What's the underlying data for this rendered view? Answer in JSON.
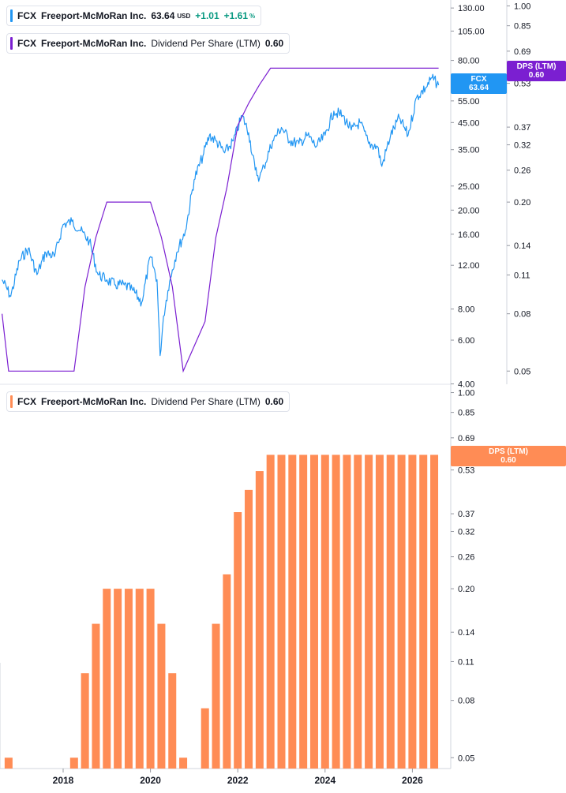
{
  "legends": {
    "top_price": {
      "symbol": "FCX",
      "name": "Freeport-McMoRan Inc.",
      "value": "63.64",
      "currency": "USD",
      "change": "+1.01",
      "change_pct": "+1.61",
      "pct_sign": "%"
    },
    "top_dps": {
      "symbol": "FCX",
      "name": "Freeport-McMoRan Inc.",
      "metric": "Dividend Per Share (LTM)",
      "value": "0.60"
    },
    "bottom_dps": {
      "symbol": "FCX",
      "name": "Freeport-McMoRan Inc.",
      "metric": "Dividend Per Share (LTM)",
      "value": "0.60"
    }
  },
  "tags": {
    "price": {
      "line1": "FCX",
      "line2": "63.64"
    },
    "dps_top": {
      "line1": "DPS (LTM)",
      "line2": "0.60"
    },
    "dps_bottom": {
      "line1": "DPS (LTM)",
      "line2": "0.60"
    }
  },
  "colors": {
    "price": "#2196f3",
    "dps_line": "#7b1fd1",
    "dps_bar": "#ff8c55",
    "up": "#089981",
    "grid": "#e0e3eb",
    "text": "#131722"
  },
  "chart_data": [
    {
      "type": "line",
      "scale": "log",
      "series": [
        {
          "name": "FCX",
          "x": [
            2016.6,
            2016.8,
            2017.0,
            2017.2,
            2017.4,
            2017.6,
            2017.8,
            2018.0,
            2018.2,
            2018.4,
            2018.6,
            2018.8,
            2019.0,
            2019.2,
            2019.4,
            2019.6,
            2019.8,
            2020.0,
            2020.15,
            2020.22,
            2020.3,
            2020.4,
            2020.5,
            2020.6,
            2020.8,
            2021.0,
            2021.2,
            2021.35,
            2021.5,
            2021.7,
            2021.9,
            2022.1,
            2022.25,
            2022.4,
            2022.5,
            2022.6,
            2022.8,
            2023.0,
            2023.2,
            2023.4,
            2023.6,
            2023.8,
            2024.0,
            2024.2,
            2024.4,
            2024.6,
            2024.8,
            2025.0,
            2025.2,
            2025.3,
            2025.5,
            2025.7,
            2025.9,
            2026.1,
            2026.3,
            2026.45,
            2026.6
          ],
          "values": [
            10.5,
            9.0,
            12.5,
            14.0,
            11.0,
            13.5,
            13.0,
            17.5,
            18.0,
            16.5,
            15.0,
            11.0,
            10.5,
            10.0,
            10.0,
            9.5,
            8.5,
            13.0,
            10.5,
            5.2,
            7.5,
            9.5,
            11.5,
            13.5,
            16.5,
            26.5,
            33.0,
            40.0,
            38.0,
            34.0,
            38.0,
            48.0,
            41.0,
            29.0,
            27.0,
            30.0,
            38.0,
            43.0,
            38.0,
            37.0,
            40.0,
            36.0,
            40.0,
            50.0,
            48.0,
            42.0,
            45.0,
            37.0,
            36.0,
            30.0,
            40.0,
            47.0,
            40.0,
            57.0,
            62.0,
            68.0,
            63.64
          ]
        },
        {
          "name": "Dividend Per Share (LTM)",
          "x": [
            2016.6,
            2016.75,
            2018.25,
            2018.5,
            2018.75,
            2019.0,
            2019.25,
            2020.0,
            2020.25,
            2020.5,
            2020.75,
            2021.25,
            2021.5,
            2021.75,
            2022.0,
            2022.25,
            2022.5,
            2022.75,
            2026.6
          ],
          "values": [
            0.08,
            0.05,
            0.05,
            0.1,
            0.15,
            0.2,
            0.2,
            0.2,
            0.15,
            0.1,
            0.05,
            0.075,
            0.15,
            0.225,
            0.375,
            0.45,
            0.525,
            0.6,
            0.6
          ]
        }
      ],
      "y_ticks_left": [
        "4.00",
        "6.00",
        "8.00",
        "12.00",
        "16.00",
        "20.00",
        "25.00",
        "35.00",
        "45.00",
        "55.00",
        "80.00",
        "105.00",
        "130.00"
      ],
      "y_ticks_right": [
        "0.05",
        "0.08",
        "0.11",
        "0.14",
        "0.20",
        "0.26",
        "0.32",
        "0.37",
        "0.53",
        "0.69",
        "0.85",
        "1.00"
      ],
      "ylim_left": [
        3.9,
        140
      ],
      "ylim_right": [
        0.044,
        1.05
      ]
    },
    {
      "type": "bar",
      "scale": "log",
      "series": [
        {
          "name": "Dividend Per Share (LTM)",
          "x": [
            2016.75,
            2018.25,
            2018.5,
            2018.75,
            2019.0,
            2019.25,
            2019.5,
            2019.75,
            2020.0,
            2020.25,
            2020.5,
            2020.75,
            2021.25,
            2021.5,
            2021.75,
            2022.0,
            2022.25,
            2022.5,
            2022.75,
            2023.0,
            2023.25,
            2023.5,
            2023.75,
            2024.0,
            2024.25,
            2024.5,
            2024.75,
            2025.0,
            2025.25,
            2025.5,
            2025.75,
            2026.0,
            2026.25,
            2026.5
          ],
          "values": [
            0.05,
            0.05,
            0.1,
            0.15,
            0.2,
            0.2,
            0.2,
            0.2,
            0.2,
            0.15,
            0.1,
            0.05,
            0.075,
            0.15,
            0.225,
            0.375,
            0.45,
            0.525,
            0.6,
            0.6,
            0.6,
            0.6,
            0.6,
            0.6,
            0.6,
            0.6,
            0.6,
            0.6,
            0.6,
            0.6,
            0.6,
            0.6,
            0.6,
            0.6
          ]
        }
      ],
      "y_ticks": [
        "0.05",
        "0.08",
        "0.11",
        "0.14",
        "0.20",
        "0.26",
        "0.32",
        "0.37",
        "0.53",
        "0.69",
        "0.85",
        "1.00"
      ],
      "ylim": [
        0.044,
        1.05
      ]
    }
  ],
  "x_ticks": [
    "2018",
    "2020",
    "2022",
    "2024",
    "2026"
  ]
}
